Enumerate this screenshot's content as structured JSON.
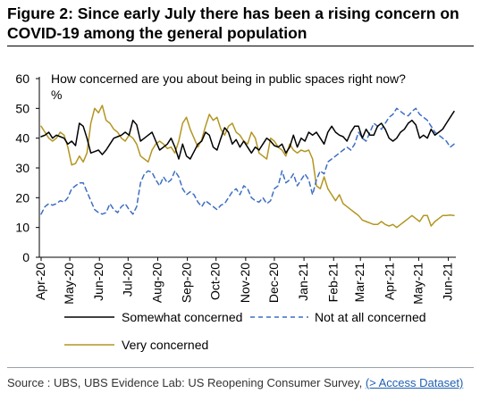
{
  "figure": {
    "title": "Figure 2: Since early July there has been a rising concern on COVID-19 among the general population"
  },
  "source": {
    "text": "Source : UBS, UBS Evidence Lab: US Reopening Consumer Survey,",
    "link": "(> Access Dataset)"
  },
  "chart_data": {
    "type": "line",
    "title": "How concerned are you about being in public spaces right now?",
    "ylabel": "%",
    "ylim": [
      0,
      60
    ],
    "yticks": [
      "0",
      "10",
      "20",
      "30",
      "40",
      "50",
      "60"
    ],
    "xticks": [
      "Apr-20",
      "May-20",
      "Jun-20",
      "Jul-20",
      "Aug-20",
      "Sep-20",
      "Oct-20",
      "Nov-20",
      "Dec-20",
      "Jan-21",
      "Feb-21",
      "Mar-21",
      "Apr-21",
      "May-21",
      "Jun-21"
    ],
    "x_start": "2020-04-01",
    "x_step_days": 4,
    "grid": false,
    "legend": "bottom",
    "series": [
      {
        "name": "Somewhat concerned",
        "color": "#000000",
        "dash": "solid",
        "values": [
          40.5,
          41,
          42,
          40,
          41,
          40.5,
          40,
          38,
          39,
          37.5,
          45,
          44,
          40,
          35,
          35.5,
          36,
          34.5,
          36,
          38,
          40,
          40.5,
          41,
          42,
          41,
          46,
          44.5,
          39,
          40,
          41,
          42,
          39,
          36,
          37,
          38,
          40,
          37,
          33,
          38,
          34,
          33,
          35.5,
          38,
          39,
          42,
          41,
          37,
          36,
          40,
          43.5,
          42,
          38,
          39.5,
          37,
          39,
          37,
          35,
          37,
          36,
          38,
          40,
          39,
          37.5,
          37,
          38,
          35,
          37,
          41,
          37,
          40,
          39,
          42,
          41,
          42,
          40,
          38,
          42,
          44,
          42,
          41,
          40.5,
          39,
          42,
          44,
          44,
          40,
          43,
          41,
          41,
          44,
          45,
          43,
          40,
          39,
          40,
          42,
          43,
          45,
          46,
          44.5,
          40,
          41,
          40,
          43,
          41,
          42,
          43,
          45,
          47,
          49
        ]
      },
      {
        "name": "Not at all concerned",
        "color": "#3d6ec2",
        "dash": "dashed",
        "values": [
          14.5,
          17,
          18,
          17.5,
          18,
          19,
          18.5,
          20,
          23,
          24,
          25,
          25,
          22,
          19,
          16,
          15,
          14.5,
          15,
          18,
          16,
          15,
          17,
          18,
          16,
          14.5,
          17,
          25,
          28,
          29,
          28.5,
          26,
          24,
          27,
          25,
          26,
          29,
          27,
          23,
          21,
          22,
          21,
          18.5,
          17,
          19,
          18,
          17,
          16,
          17.5,
          18,
          20,
          22,
          23,
          21,
          24,
          23,
          20,
          19,
          18.5,
          20,
          18,
          19,
          23,
          24,
          29,
          25,
          26,
          28,
          24,
          26,
          28,
          26,
          21,
          26,
          29,
          28,
          32,
          33,
          34,
          35,
          36,
          37,
          36,
          38,
          42,
          40,
          39,
          42,
          45,
          44,
          43,
          45,
          47,
          48,
          50,
          49,
          48,
          47.5,
          49,
          50,
          48,
          47,
          46,
          44,
          42,
          41,
          40,
          39,
          37,
          38
        ]
      },
      {
        "name": "Very concerned",
        "color": "#b39622",
        "dash": "solid",
        "values": [
          44,
          42,
          40,
          39,
          40,
          42,
          41,
          37,
          31,
          31.5,
          34,
          32,
          35,
          45,
          50,
          48.5,
          51,
          46,
          45,
          43,
          42,
          40,
          39,
          41,
          40,
          38,
          34,
          33,
          32,
          36,
          38,
          39,
          38,
          36.5,
          37,
          35,
          39,
          45,
          47,
          43,
          40,
          37,
          39.5,
          44,
          48,
          46,
          47,
          43,
          41,
          44,
          45,
          42,
          41,
          39,
          38,
          42,
          40,
          35,
          34,
          33,
          40,
          39,
          37,
          36,
          34,
          38,
          36,
          35,
          36,
          35.5,
          36,
          33,
          24,
          23,
          27,
          23,
          21,
          19,
          21,
          18,
          17,
          16,
          15,
          14,
          12.5,
          12,
          11.5,
          11,
          11,
          12,
          11,
          10.5,
          11,
          10,
          11,
          12,
          13,
          14,
          13,
          12,
          14,
          14,
          10.5,
          12,
          13,
          14,
          14,
          14.2,
          14
        ]
      }
    ]
  }
}
